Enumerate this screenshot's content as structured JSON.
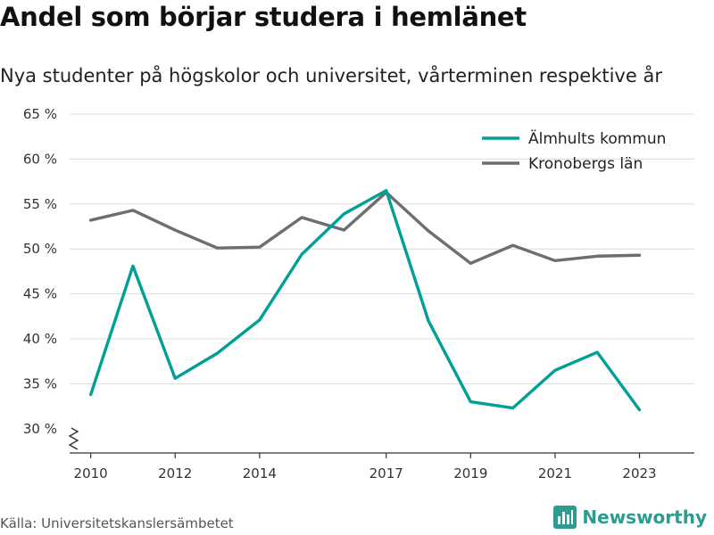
{
  "header": {
    "title": "Andel som börjar studera i hemlänet",
    "subtitle": "Nya studenter på högskolor och universitet, vårterminen respektive år"
  },
  "footer": {
    "source": "Källa: Universitetskanslersämbetet",
    "brand": "Newsworthy",
    "brand_icon": "bar-chart-icon",
    "brand_color": "#2b9c8f"
  },
  "chart_data": {
    "type": "line",
    "title": "Andel som börjar studera i hemlänet",
    "subtitle": "Nya studenter på högskolor och universitet, vårterminen respektive år",
    "xlabel": "",
    "ylabel": "",
    "x": [
      2010,
      2011,
      2012,
      2013,
      2014,
      2015,
      2016,
      2017,
      2018,
      2019,
      2020,
      2021,
      2022,
      2023
    ],
    "x_ticks": [
      "2010",
      "2012",
      "2014",
      "2017",
      "2019",
      "2021",
      "2023"
    ],
    "x_tick_values": [
      2010,
      2012,
      2014,
      2017,
      2019,
      2021,
      2023
    ],
    "y_ticks": [
      "30 %",
      "35 %",
      "40 %",
      "45 %",
      "50 %",
      "55 %",
      "60 %",
      "65 %"
    ],
    "y_tick_values": [
      30,
      35,
      40,
      45,
      50,
      55,
      60,
      65
    ],
    "xlim": [
      2009.5,
      2024.3
    ],
    "ylim": [
      27.3,
      65
    ],
    "axis_break": true,
    "grid": true,
    "legend_position": "top-right",
    "series": [
      {
        "name": "Älmhults kommun",
        "color": "#00a096",
        "values": [
          33.8,
          48.1,
          35.6,
          38.4,
          42.1,
          49.4,
          53.9,
          56.5,
          42.0,
          33.0,
          32.3,
          36.5,
          38.5,
          32.1
        ]
      },
      {
        "name": "Kronobergs län",
        "color": "#6d6d72",
        "values": [
          53.2,
          54.3,
          52.1,
          50.1,
          50.2,
          53.5,
          52.1,
          56.3,
          52.0,
          48.4,
          50.4,
          48.7,
          49.2,
          49.3
        ]
      }
    ]
  }
}
